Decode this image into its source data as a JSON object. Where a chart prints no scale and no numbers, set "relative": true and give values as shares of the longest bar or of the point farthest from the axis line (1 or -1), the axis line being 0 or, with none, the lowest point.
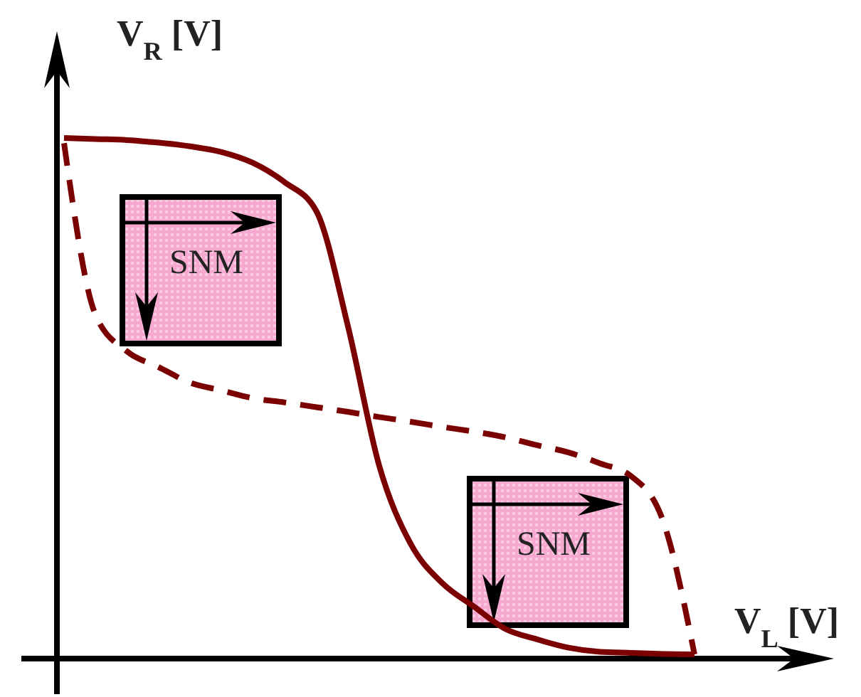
{
  "chart_data": {
    "type": "line",
    "relative": true,
    "xlabel": "V$_{L}$ [V]",
    "ylabel": "V$_{R}$ [V]",
    "categories": [
      null,
      null,
      null,
      null,
      null,
      null,
      null,
      null,
      null,
      null,
      null,
      null,
      null,
      null,
      null,
      null,
      null,
      null,
      null,
      null,
      null
    ],
    "series": [
      {
        "color": "#7b0000",
        "line_style": "solid",
        "values": [
          1,
          0.998,
          0.996,
          0.991,
          0.984,
          0.973,
          0.952,
          0.915,
          0.86,
          0.64,
          0.37,
          0.22,
          0.145,
          0.1,
          0.057,
          0.037,
          0.021,
          0.013,
          0.011,
          0.009,
          0.008
        ]
      },
      {
        "color": "#7b0000",
        "line_style": "dashed",
        "values": [
          0.99,
          0.66,
          0.59,
          0.56,
          0.53,
          0.515,
          0.5,
          0.492,
          0.483,
          0.474,
          0.464,
          0.455,
          0.445,
          0.436,
          0.425,
          0.41,
          0.396,
          0.375,
          0.35,
          0.265,
          0.008
        ]
      }
    ],
    "annotations": [
      "SNM",
      "SNM"
    ]
  }
}
